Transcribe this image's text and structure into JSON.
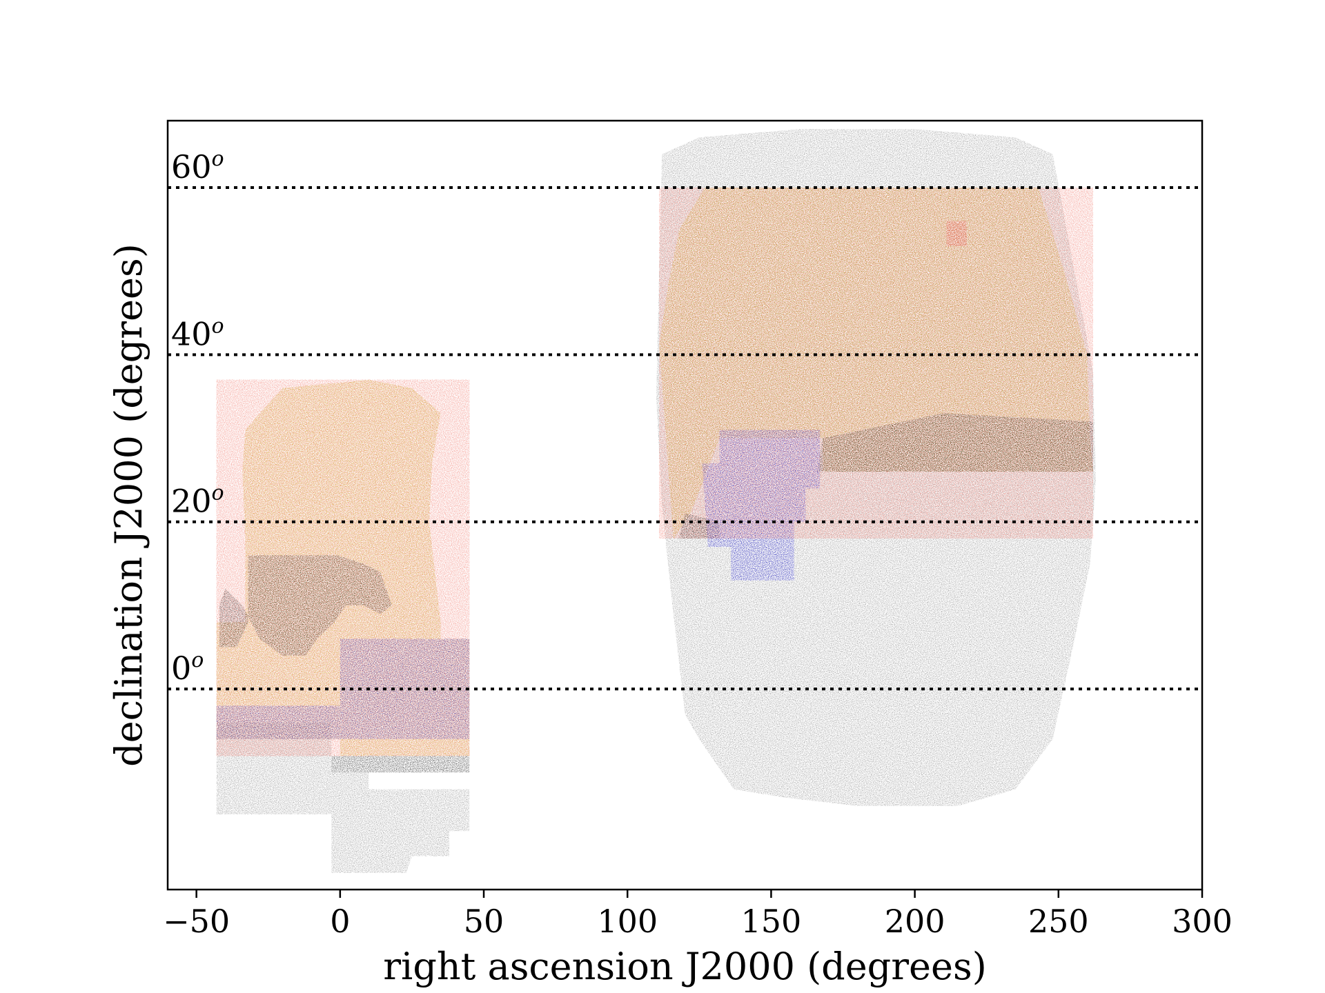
{
  "chart_data": {
    "type": "scatter",
    "title": "",
    "xlabel": "right ascension J2000 (degrees)",
    "ylabel": "declination J2000 (degrees)",
    "xlim": [
      -60,
      300
    ],
    "ylim": [
      -24,
      68
    ],
    "xticks": [
      -50,
      0,
      50,
      100,
      150,
      200,
      250,
      300
    ],
    "xtick_labels": [
      "−50",
      "0",
      "50",
      "100",
      "150",
      "200",
      "250",
      "300"
    ],
    "declination_lines": [
      {
        "dec": 0,
        "label": "0",
        "sup": "o"
      },
      {
        "dec": 20,
        "label": "20",
        "sup": "o"
      },
      {
        "dec": 40,
        "label": "40",
        "sup": "o"
      },
      {
        "dec": 60,
        "label": "60",
        "sup": "o"
      }
    ],
    "colors": {
      "gray": "#8c8c8c",
      "gold": "#c9a614",
      "black": "#1a1a1a",
      "blue": "#2a2ad8",
      "red": "#e0302a"
    },
    "series": [
      {
        "name": "gray",
        "color": "#8c8c8c",
        "polygons": [
          [
            [
              112,
              64
            ],
            [
              125,
              66
            ],
            [
              160,
              67
            ],
            [
              200,
              67
            ],
            [
              235,
              66
            ],
            [
              248,
              64
            ],
            [
              262,
              38
            ],
            [
              263,
              25
            ],
            [
              261,
              15
            ],
            [
              255,
              5
            ],
            [
              248,
              -6
            ],
            [
              235,
              -12
            ],
            [
              215,
              -14
            ],
            [
              180,
              -14
            ],
            [
              155,
              -13
            ],
            [
              137,
              -12
            ],
            [
              125,
              -6
            ],
            [
              120,
              -3
            ],
            [
              117,
              6
            ],
            [
              115,
              12
            ],
            [
              112,
              22
            ],
            [
              110,
              35
            ]
          ],
          [
            [
              -43,
              -4
            ],
            [
              -10,
              -4
            ],
            [
              -3,
              -4
            ],
            [
              -3,
              -10
            ],
            [
              10,
              -10
            ],
            [
              10,
              -12
            ],
            [
              45,
              -12
            ],
            [
              45,
              -17
            ],
            [
              38,
              -17
            ],
            [
              38,
              -20
            ],
            [
              25,
              -20
            ],
            [
              23,
              -22
            ],
            [
              -3,
              -22
            ],
            [
              -3,
              -15
            ],
            [
              -43,
              -15
            ]
          ]
        ]
      },
      {
        "name": "gold",
        "color": "#c9a614",
        "polygons": [
          [
            [
              127,
              60
            ],
            [
              243,
              60
            ],
            [
              252,
              50
            ],
            [
              260,
              40
            ],
            [
              261,
              30
            ],
            [
              262,
              26
            ],
            [
              168,
              26
            ],
            [
              168,
              30
            ],
            [
              132,
              30
            ],
            [
              122,
              21
            ],
            [
              120,
              20
            ],
            [
              116,
              18
            ],
            [
              113,
              32
            ],
            [
              111,
              41
            ],
            [
              114,
              48
            ],
            [
              118,
              55
            ]
          ],
          [
            [
              -33,
              31
            ],
            [
              -28,
              33
            ],
            [
              -20,
              36
            ],
            [
              10,
              37
            ],
            [
              25,
              36
            ],
            [
              35,
              33
            ],
            [
              32,
              27
            ],
            [
              31,
              20
            ],
            [
              35,
              8
            ],
            [
              35,
              6
            ],
            [
              45,
              6
            ],
            [
              45,
              -8
            ],
            [
              0,
              -8
            ],
            [
              0,
              -6
            ],
            [
              -43,
              -6
            ],
            [
              -43,
              8
            ],
            [
              -33,
              8
            ],
            [
              -33,
              18
            ],
            [
              -34,
              26
            ]
          ]
        ]
      },
      {
        "name": "black",
        "color": "#1a1a1a",
        "polygons": [
          [
            [
              -32,
              16
            ],
            [
              -1,
              16
            ],
            [
              8,
              15
            ],
            [
              14,
              14
            ],
            [
              18,
              10
            ],
            [
              14,
              9
            ],
            [
              8,
              10
            ],
            [
              2,
              10
            ],
            [
              -2,
              8
            ],
            [
              -8,
              6
            ],
            [
              -12,
              4
            ],
            [
              -20,
              4
            ],
            [
              -28,
              6
            ],
            [
              -34,
              10
            ],
            [
              -40,
              12
            ],
            [
              -42,
              10
            ],
            [
              -42,
              5
            ],
            [
              -36,
              5
            ],
            [
              -32,
              8
            ]
          ],
          [
            [
              -3,
              -8
            ],
            [
              45,
              -8
            ],
            [
              45,
              -10
            ],
            [
              -3,
              -10
            ]
          ],
          [
            [
              166,
              26
            ],
            [
              262,
              26
            ],
            [
              262,
              32
            ],
            [
              210,
              33
            ],
            [
              168,
              30
            ]
          ],
          [
            [
              118,
              18
            ],
            [
              132,
              18
            ],
            [
              132,
              20
            ],
            [
              120,
              21
            ]
          ]
        ]
      },
      {
        "name": "blue",
        "color": "#2a2ad8",
        "polygons": [
          [
            [
              132,
              31
            ],
            [
              167,
              31
            ],
            [
              167,
              24
            ],
            [
              162,
              24
            ],
            [
              162,
              20
            ],
            [
              158,
              20
            ],
            [
              158,
              13
            ],
            [
              136,
              13
            ],
            [
              136,
              17
            ],
            [
              128,
              17
            ],
            [
              126,
              27
            ],
            [
              132,
              27
            ]
          ],
          [
            [
              0,
              6
            ],
            [
              45,
              6
            ],
            [
              45,
              -6
            ],
            [
              0,
              -6
            ]
          ],
          [
            [
              -43,
              -2
            ],
            [
              0,
              -2
            ],
            [
              0,
              -6
            ],
            [
              -43,
              -6
            ]
          ]
        ]
      },
      {
        "name": "red",
        "color": "#e0302a",
        "polygons": [
          [
            [
              211,
              56
            ],
            [
              218,
              56
            ],
            [
              218,
              53
            ],
            [
              211,
              53
            ]
          ]
        ]
      }
    ]
  }
}
